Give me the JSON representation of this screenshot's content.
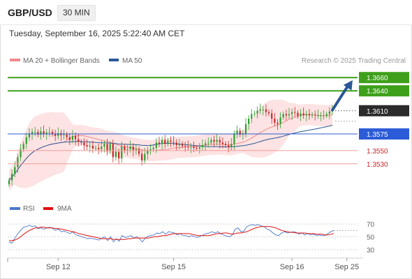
{
  "header": {
    "symbol": "GBP/USD",
    "timeframe": "30 MIN"
  },
  "datetime": "Tuesday, September 16, 2025 5:22:40 AM CET",
  "legend": {
    "ma20": {
      "label": "MA 20 + Bollinger Bands",
      "color": "#f08a8a"
    },
    "ma50": {
      "label": "MA 50",
      "color": "#2b5797"
    }
  },
  "credit": "Research © 2025 Trading Central",
  "rsi_legend": {
    "rsi": {
      "label": "RSI",
      "color": "#4a78c8"
    },
    "ma9": {
      "label": "9MA",
      "color": "#e01010"
    }
  },
  "colors": {
    "up": "#2e9e2e",
    "down": "#c62828",
    "resistance": "#3ea01a",
    "support": "#f4a3a3",
    "pivot": "#2b5bd6",
    "arrow": "#2b5797"
  },
  "chart_data": [
    {
      "type": "candlestick",
      "ylim": [
        1.3493,
        1.3676
      ],
      "x_range": [
        0,
        118
      ],
      "x_ticks": [
        {
          "label": "Sep 12",
          "x": 17
        },
        {
          "label": "Sep 15",
          "x": 57
        },
        {
          "label": "Sep 16",
          "x": 98
        },
        {
          "label": "Sep 25",
          "x": 117
        }
      ],
      "levels": [
        {
          "label": "1.3660",
          "value": 1.366,
          "kind": "resistance"
        },
        {
          "label": "1.3640",
          "value": 1.364,
          "kind": "resistance"
        },
        {
          "label": "1.3610",
          "value": 1.361,
          "kind": "last"
        },
        {
          "label": "1.3575",
          "value": 1.3575,
          "kind": "pivot"
        },
        {
          "label": "1.3550",
          "value": 1.355,
          "kind": "support"
        },
        {
          "label": "1.3530",
          "value": 1.353,
          "kind": "support"
        }
      ],
      "forecast_arrow": {
        "from": [
          112,
          1.3611
        ],
        "to": [
          119,
          1.3656
        ]
      },
      "closes": [
        1.3505,
        1.3515,
        1.3525,
        1.354,
        1.3552,
        1.356,
        1.357,
        1.3575,
        1.3578,
        1.3578,
        1.3574,
        1.3579,
        1.3575,
        1.3577,
        1.3578,
        1.3575,
        1.3572,
        1.3576,
        1.3573,
        1.3574,
        1.357,
        1.3566,
        1.3572,
        1.3567,
        1.3563,
        1.3562,
        1.3558,
        1.3556,
        1.3557,
        1.3553,
        1.3554,
        1.3552,
        1.3556,
        1.356,
        1.3549,
        1.356,
        1.354,
        1.3548,
        1.3538,
        1.3556,
        1.355,
        1.3552,
        1.3556,
        1.355,
        1.3552,
        1.3545,
        1.3535,
        1.3545,
        1.355,
        1.3552,
        1.3554,
        1.3562,
        1.356,
        1.3566,
        1.356,
        1.3565,
        1.3563,
        1.3562,
        1.3558,
        1.356,
        1.3557,
        1.3556,
        1.3555,
        1.3556,
        1.3554,
        1.3553,
        1.3555,
        1.3558,
        1.3561,
        1.3562,
        1.3566,
        1.3563,
        1.3566,
        1.3562,
        1.356,
        1.3558,
        1.3555,
        1.356,
        1.3575,
        1.358,
        1.3574,
        1.3575,
        1.359,
        1.3598,
        1.3605,
        1.3606,
        1.361,
        1.3612,
        1.3612,
        1.3608,
        1.3606,
        1.3598,
        1.3592,
        1.359,
        1.36,
        1.3605,
        1.3603,
        1.3605,
        1.3608,
        1.3607,
        1.3602,
        1.3606,
        1.3603,
        1.3605,
        1.3603,
        1.3604,
        1.3603,
        1.3603,
        1.3603,
        1.3603,
        1.3605,
        1.3609,
        1.361
      ]
    },
    {
      "type": "line",
      "name": "RSI",
      "ylim": [
        20,
        80
      ],
      "y_ticks": [
        70,
        50,
        30
      ],
      "rsi": [
        42,
        40,
        48,
        55,
        60,
        65,
        66,
        68,
        66,
        67,
        63,
        64,
        62,
        64,
        65,
        63,
        60,
        62,
        58,
        59,
        57,
        55,
        58,
        53,
        52,
        50,
        49,
        47,
        48,
        47,
        46,
        45,
        48,
        50,
        44,
        50,
        42,
        47,
        43,
        52,
        49,
        50,
        52,
        48,
        50,
        47,
        42,
        48,
        51,
        52,
        53,
        56,
        55,
        58,
        54,
        58,
        57,
        56,
        53,
        55,
        52,
        52,
        50,
        52,
        50,
        49,
        51,
        53,
        55,
        56,
        58,
        56,
        58,
        55,
        53,
        51,
        50,
        53,
        62,
        64,
        58,
        59,
        66,
        68,
        69,
        68,
        69,
        67,
        66,
        62,
        60,
        56,
        53,
        52,
        56,
        58,
        56,
        57,
        58,
        57,
        54,
        56,
        53,
        55,
        53,
        54,
        52,
        53,
        52,
        52,
        55,
        58,
        60
      ],
      "ma9": [
        44,
        44,
        45,
        47,
        50,
        54,
        57,
        60,
        62,
        64,
        64,
        65,
        65,
        64,
        64,
        64,
        63,
        63,
        62,
        61,
        60,
        59,
        58,
        57,
        55,
        54,
        53,
        52,
        51,
        50,
        49,
        48,
        47,
        47,
        47,
        47,
        46,
        46,
        46,
        46,
        46,
        47,
        47,
        48,
        48,
        48,
        48,
        48,
        48,
        49,
        50,
        50,
        51,
        52,
        52,
        53,
        54,
        55,
        55,
        55,
        55,
        55,
        55,
        54,
        53,
        52,
        52,
        52,
        52,
        52,
        53,
        54,
        55,
        55,
        56,
        56,
        55,
        54,
        55,
        56,
        56,
        57,
        58,
        60,
        62,
        64,
        65,
        66,
        66,
        66,
        66,
        65,
        64,
        62,
        60,
        59,
        58,
        57,
        57,
        56,
        56,
        56,
        56,
        55,
        55,
        55,
        54,
        54,
        54,
        53,
        53,
        54,
        55
      ]
    }
  ]
}
